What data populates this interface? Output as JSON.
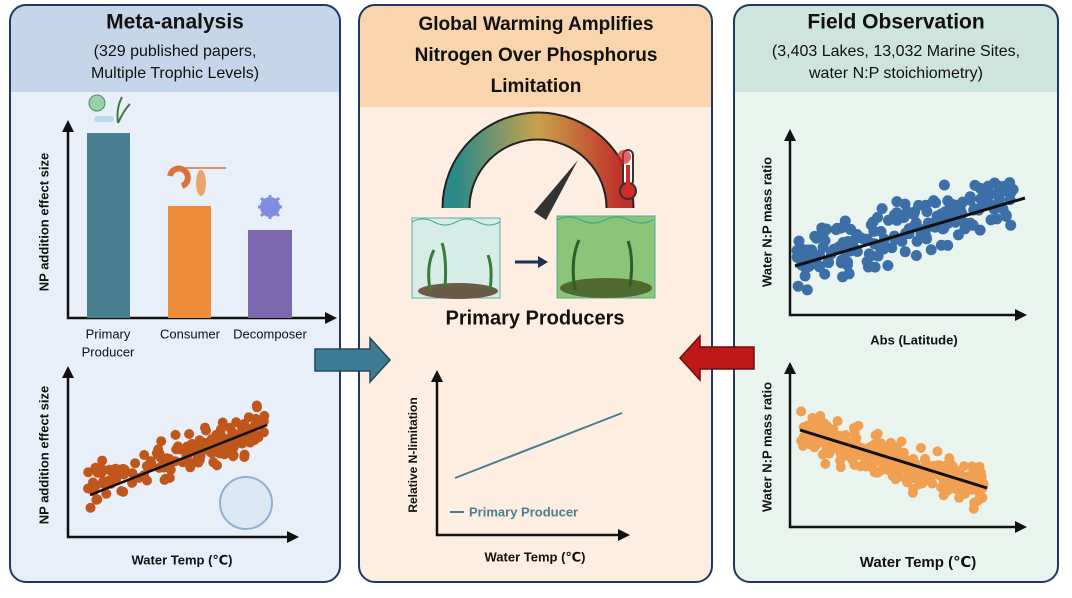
{
  "left_panel": {
    "title": "Meta-analysis",
    "subtitle_lines": [
      "(329 published papers,",
      "Multiple Trophic Levels)"
    ],
    "bar_plot": {
      "y_label": "NP addition effect size",
      "categories": [
        [
          "Primary",
          "Producer"
        ],
        [
          "Consumer"
        ],
        [
          "Decomposer"
        ]
      ]
    },
    "scatter_plot": {
      "y_label": "NP addition effect size",
      "x_label": "Water Temp (℃)"
    }
  },
  "middle_panel": {
    "title_lines": [
      "Global Warming Amplifies",
      "Nitrogen Over Phosphorus",
      "Limitation"
    ],
    "caption": "Primary Producers",
    "line_plot": {
      "y_label": "Relative N-limitation",
      "legend": "Primary Producer",
      "x_label": "Water Temp (℃)"
    }
  },
  "right_panel": {
    "title": "Field Observation",
    "subtitle_lines": [
      "(3,403 Lakes, 13,032 Marine Sites,",
      "water N:P stoichiometry)"
    ],
    "latitude_plot": {
      "y_label": "Water N:P mass ratio",
      "x_label": "Abs (Latitude)"
    },
    "temperature_plot": {
      "y_label": "Water N:P mass ratio",
      "x_label": "Water Temp (℃)"
    }
  }
}
